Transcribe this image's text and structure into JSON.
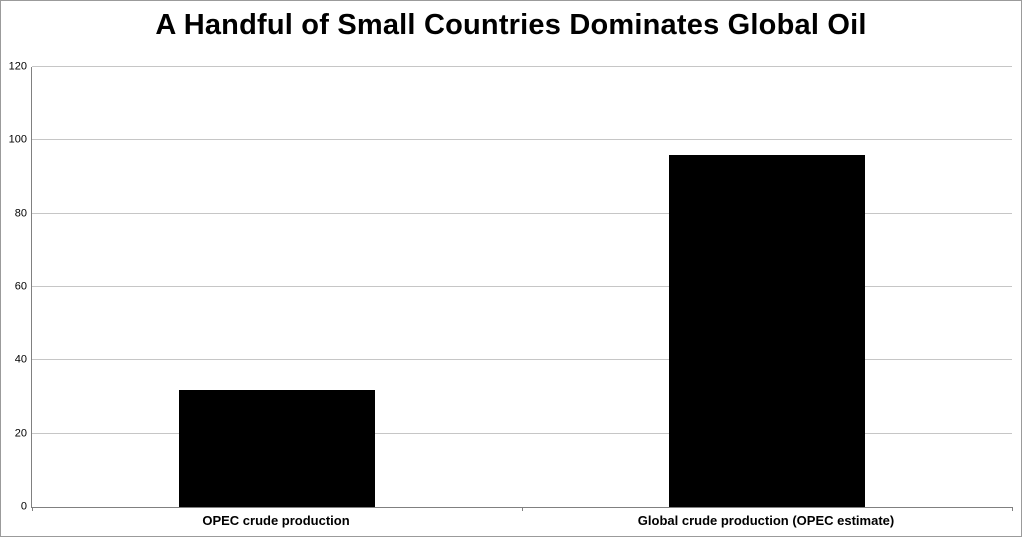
{
  "chart_data": {
    "type": "bar",
    "title": "A Handful of Small Countries Dominates Global Oil",
    "categories": [
      "OPEC crude production",
      "Global crude production (OPEC estimate)"
    ],
    "values": [
      32,
      96
    ],
    "xlabel": "",
    "ylabel": "",
    "ylim": [
      0,
      120
    ],
    "yticks": [
      0,
      20,
      40,
      60,
      80,
      100,
      120
    ],
    "grid": true,
    "legend_position": "none",
    "bar_color": "#000000",
    "gridline_color": "#c6c6c6",
    "axis_color": "#808080"
  }
}
